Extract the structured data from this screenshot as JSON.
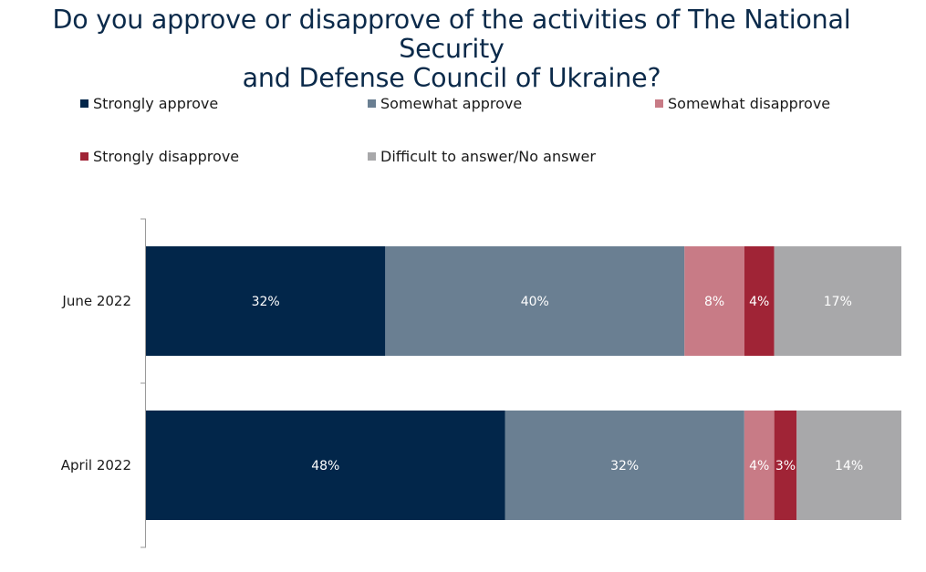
{
  "chart_data": {
    "type": "bar",
    "orientation": "horizontal",
    "stacked": true,
    "title": "Do you approve or disapprove of the activities of The National Security and Defense Council of Ukraine?",
    "title_lines": [
      "Do you approve or disapprove of the activities of The National Security",
      "and Defense Council of Ukraine?"
    ],
    "categories": [
      "June 2022",
      "April 2022"
    ],
    "series": [
      {
        "name": "Strongly approve",
        "color": "#02264a",
        "values": [
          32,
          48
        ],
        "labels": [
          "32%",
          "48%"
        ]
      },
      {
        "name": "Somewhat approve",
        "color": "#6a7f92",
        "values": [
          40,
          32
        ],
        "labels": [
          "40%",
          "32%"
        ]
      },
      {
        "name": "Somewhat disapprove",
        "color": "#c87b86",
        "values": [
          8,
          4
        ],
        "labels": [
          "8%",
          "4%"
        ]
      },
      {
        "name": "Strongly disapprove",
        "color": "#a02436",
        "values": [
          4,
          3
        ],
        "labels": [
          "4%",
          "3%"
        ]
      },
      {
        "name": "Difficult to answer/No answer",
        "color": "#a8a8aa",
        "values": [
          17,
          14
        ],
        "labels": [
          "17%",
          "14%"
        ]
      }
    ],
    "legend_position": "top",
    "grid": false
  }
}
